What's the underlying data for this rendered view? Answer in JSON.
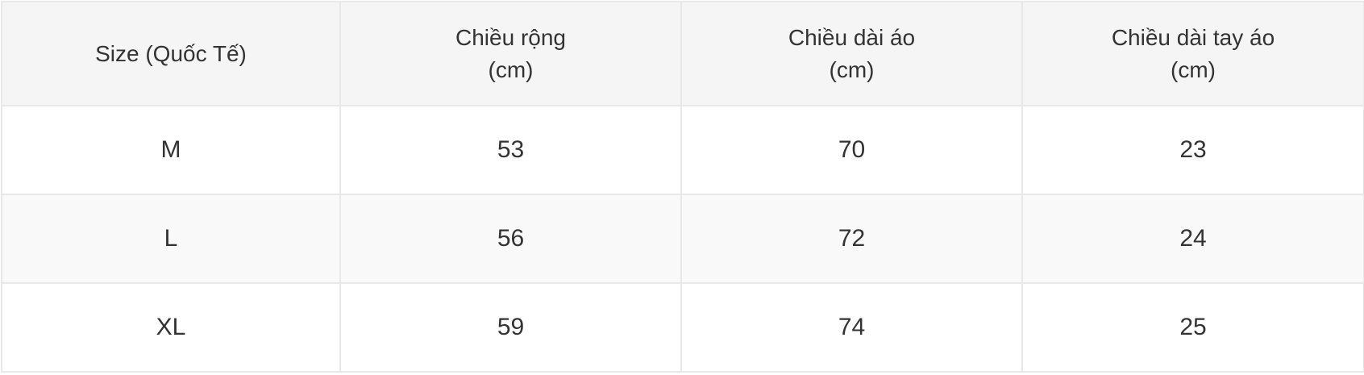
{
  "table": {
    "headers": [
      [
        "Size (Quốc Tế)"
      ],
      [
        "Chiều rộng",
        "(cm)"
      ],
      [
        "Chiều dài áo",
        "(cm)"
      ],
      [
        "Chiều dài tay áo",
        "(cm)"
      ]
    ],
    "rows": [
      [
        "M",
        "53",
        "70",
        "23"
      ],
      [
        "L",
        "56",
        "72",
        "24"
      ],
      [
        "XL",
        "59",
        "74",
        "25"
      ]
    ]
  }
}
